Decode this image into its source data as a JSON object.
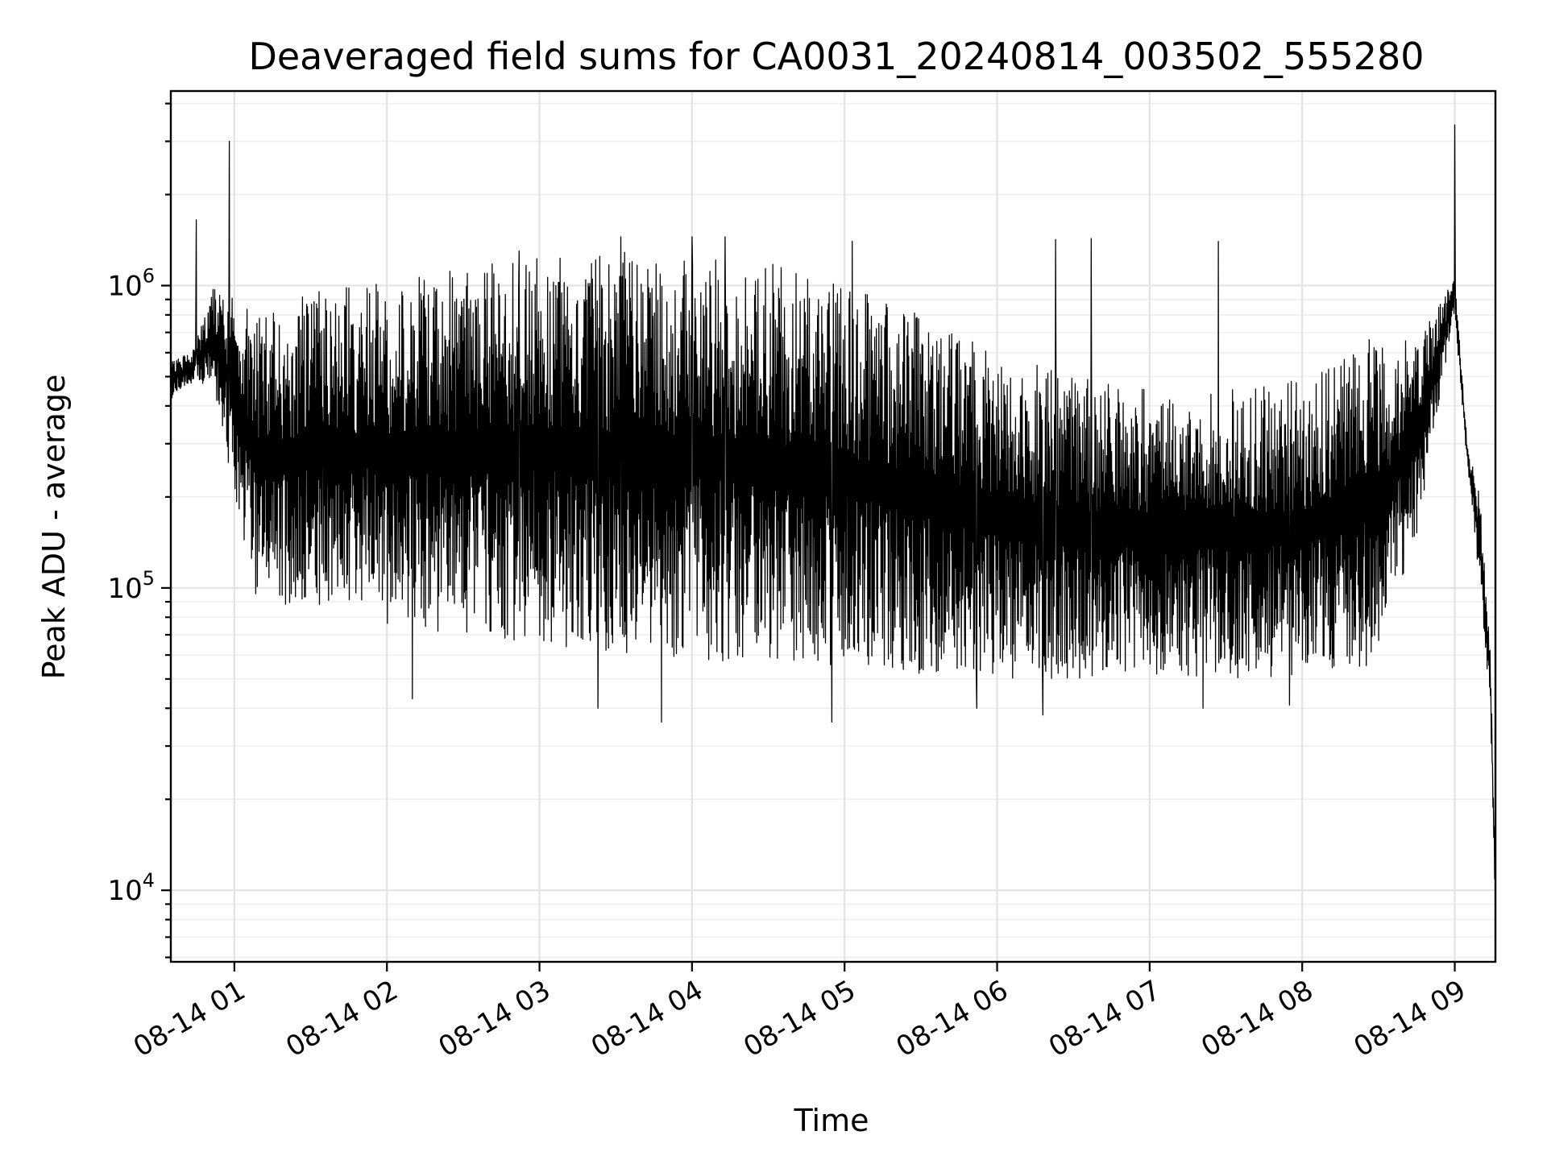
{
  "chart_data": {
    "type": "line",
    "title": "Deaveraged field sums for CA0031_20240814_003502_555280",
    "xlabel": "Time",
    "ylabel": "Peak ADU - average",
    "x_axis": {
      "type": "datetime",
      "range": [
        "2024-08-14 00:35",
        "2024-08-14 09:16"
      ]
    },
    "y_axis": {
      "scale": "log",
      "range": [
        5800,
        4400000
      ]
    },
    "x_ticks": [
      {
        "value": "2024-08-14 01:00",
        "label": "08-14 01"
      },
      {
        "value": "2024-08-14 02:00",
        "label": "08-14 02"
      },
      {
        "value": "2024-08-14 03:00",
        "label": "08-14 03"
      },
      {
        "value": "2024-08-14 04:00",
        "label": "08-14 04"
      },
      {
        "value": "2024-08-14 05:00",
        "label": "08-14 05"
      },
      {
        "value": "2024-08-14 06:00",
        "label": "08-14 06"
      },
      {
        "value": "2024-08-14 07:00",
        "label": "08-14 07"
      },
      {
        "value": "2024-08-14 08:00",
        "label": "08-14 08"
      },
      {
        "value": "2024-08-14 09:00",
        "label": "08-14 09"
      }
    ],
    "y_ticks": [
      {
        "value": 10000,
        "base": "10",
        "exp": "4"
      },
      {
        "value": 100000,
        "base": "10",
        "exp": "5"
      },
      {
        "value": 1000000,
        "base": "10",
        "exp": "6"
      }
    ],
    "grid": "both",
    "legend": "none",
    "line_color": "#000000",
    "series": [
      {
        "envelope": {
          "x": [
            "2024-08-14 00:35",
            "2024-08-14 00:44",
            "2024-08-14 00:52",
            "2024-08-14 01:00",
            "2024-08-14 01:10",
            "2024-08-14 01:30",
            "2024-08-14 02:00",
            "2024-08-14 02:30",
            "2024-08-14 03:00",
            "2024-08-14 03:30",
            "2024-08-14 04:00",
            "2024-08-14 04:30",
            "2024-08-14 05:00",
            "2024-08-14 05:30",
            "2024-08-14 06:00",
            "2024-08-14 06:30",
            "2024-08-14 07:00",
            "2024-08-14 07:30",
            "2024-08-14 08:00",
            "2024-08-14 08:30",
            "2024-08-14 08:45",
            "2024-08-14 09:00",
            "2024-08-14 09:05",
            "2024-08-14 09:10",
            "2024-08-14 09:14",
            "2024-08-14 09:16"
          ],
          "low": [
            420000,
            480000,
            450000,
            200000,
            80000,
            90000,
            75000,
            70000,
            65000,
            60000,
            58000,
            56000,
            55000,
            52000,
            50000,
            50000,
            52000,
            50000,
            50000,
            55000,
            150000,
            800000,
            250000,
            100000,
            40000,
            7800
          ],
          "high": [
            560000,
            620000,
            1000000,
            900000,
            800000,
            950000,
            1050000,
            1150000,
            1250000,
            1300000,
            1250000,
            1200000,
            1000000,
            800000,
            600000,
            500000,
            450000,
            450000,
            500000,
            700000,
            650000,
            1100000,
            300000,
            200000,
            60000,
            12000
          ]
        },
        "spikes": [
          {
            "x": "2024-08-14 00:58",
            "y": 3000000
          },
          {
            "x": "2024-08-14 00:45",
            "y": 1650000
          },
          {
            "x": "2024-08-14 02:52",
            "y": 1300000
          },
          {
            "x": "2024-08-14 03:32",
            "y": 1450000
          },
          {
            "x": "2024-08-14 04:00",
            "y": 1450000
          },
          {
            "x": "2024-08-14 04:13",
            "y": 1450000
          },
          {
            "x": "2024-08-14 05:03",
            "y": 1400000
          },
          {
            "x": "2024-08-14 06:23",
            "y": 1420000
          },
          {
            "x": "2024-08-14 06:37",
            "y": 1430000
          },
          {
            "x": "2024-08-14 07:27",
            "y": 1400000
          },
          {
            "x": "2024-08-14 09:00",
            "y": 3400000
          }
        ],
        "dips": [
          {
            "x": "2024-08-14 02:10",
            "y": 43000
          },
          {
            "x": "2024-08-14 03:23",
            "y": 40000
          },
          {
            "x": "2024-08-14 03:48",
            "y": 36000
          },
          {
            "x": "2024-08-14 04:55",
            "y": 36000
          },
          {
            "x": "2024-08-14 05:52",
            "y": 40000
          },
          {
            "x": "2024-08-14 06:18",
            "y": 38000
          },
          {
            "x": "2024-08-14 07:21",
            "y": 40000
          },
          {
            "x": "2024-08-14 07:55",
            "y": 41000
          }
        ]
      }
    ]
  }
}
